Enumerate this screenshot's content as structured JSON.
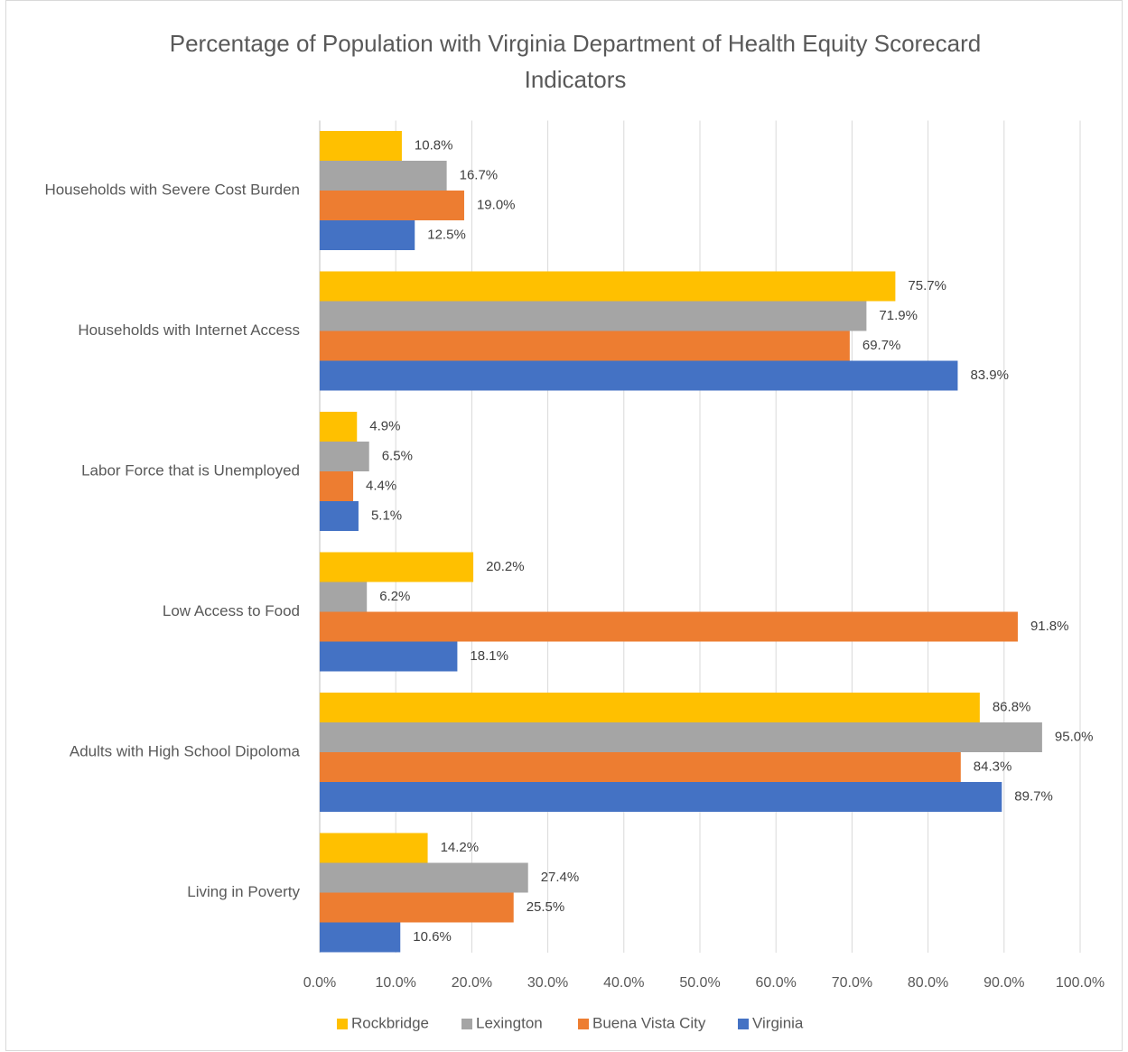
{
  "chart_data": {
    "type": "bar",
    "orientation": "horizontal",
    "title": "Percentage of Population with Virginia Department of Health Equity Scorecard Indicators",
    "categories": [
      "Households with Severe Cost Burden",
      "Households with Internet Access",
      "Labor Force that is Unemployed",
      "Low Access to Food",
      "Adults with High School Dipoloma",
      "Living in Poverty"
    ],
    "series": [
      {
        "name": "Rockbridge",
        "color": "#FFC000",
        "values": [
          10.8,
          75.7,
          4.9,
          20.2,
          86.8,
          14.2
        ],
        "value_labels": [
          "10.8%",
          "75.7%",
          "4.9%",
          "20.2%",
          "86.8%",
          "14.2%"
        ]
      },
      {
        "name": "Lexington",
        "color": "#A5A5A5",
        "values": [
          16.7,
          71.9,
          6.5,
          6.2,
          95.0,
          27.4
        ],
        "value_labels": [
          "16.7%",
          "71.9%",
          "6.5%",
          "6.2%",
          "95.0%",
          "27.4%"
        ]
      },
      {
        "name": "Buena Vista City",
        "color": "#ED7D31",
        "values": [
          19.0,
          69.7,
          4.4,
          91.8,
          84.3,
          25.5
        ],
        "value_labels": [
          "19.0%",
          "69.7%",
          "4.4%",
          "91.8%",
          "84.3%",
          "25.5%"
        ]
      },
      {
        "name": "Virginia",
        "color": "#4472C4",
        "values": [
          12.5,
          83.9,
          5.1,
          18.1,
          89.7,
          10.6
        ],
        "value_labels": [
          "12.5%",
          "83.9%",
          "5.1%",
          "18.1%",
          "89.7%",
          "10.6%"
        ]
      }
    ],
    "xlim": [
      0,
      100
    ],
    "xticks": [
      {
        "value": 0,
        "label": "0.0%"
      },
      {
        "value": 10,
        "label": "10.0%"
      },
      {
        "value": 20,
        "label": "20.0%"
      },
      {
        "value": 30,
        "label": "30.0%"
      },
      {
        "value": 40,
        "label": "40.0%"
      },
      {
        "value": 50,
        "label": "50.0%"
      },
      {
        "value": 60,
        "label": "60.0%"
      },
      {
        "value": 70,
        "label": "70.0%"
      },
      {
        "value": 80,
        "label": "80.0%"
      },
      {
        "value": 90,
        "label": "90.0%"
      },
      {
        "value": 100,
        "label": "100.0%"
      }
    ],
    "grid": true,
    "legend": "bottom"
  }
}
